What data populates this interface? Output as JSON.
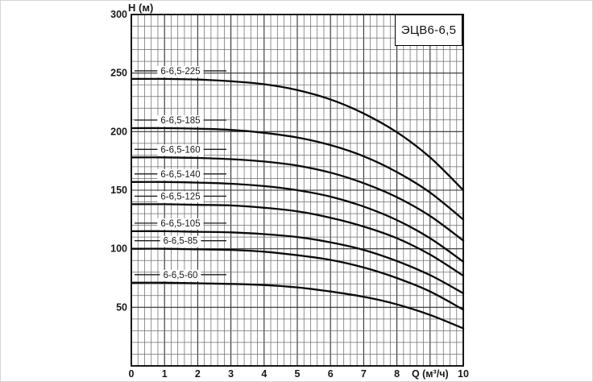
{
  "title_box": "ЭЦВ6-6,5",
  "y_axis": {
    "label": "H (м)",
    "tick_labels": [
      "300",
      "250",
      "200",
      "150",
      "100",
      "50"
    ],
    "tick_values": [
      300,
      250,
      200,
      150,
      100,
      50
    ]
  },
  "x_axis": {
    "label": "Q (м³/ч)",
    "tick_labels": [
      "0",
      "1",
      "2",
      "3",
      "4",
      "5",
      "6",
      "7",
      "8",
      "Q (м³/ч)",
      "10"
    ],
    "tick_values": [
      0,
      1,
      2,
      3,
      4,
      5,
      6,
      7,
      8,
      9,
      10
    ]
  },
  "chart_data": {
    "type": "line",
    "title": "ЭЦВ6-6,5",
    "xlabel": "Q (м³/ч)",
    "ylabel": "H (м)",
    "xlim": [
      0,
      10
    ],
    "ylim": [
      0,
      300
    ],
    "grid": "minor x every 0.2, minor y every 10, major x every 1, major y every 50",
    "legend_position": "labels above each curve start",
    "x": [
      0,
      1,
      2,
      3,
      4,
      5,
      6,
      7,
      8,
      9,
      10
    ],
    "series": [
      {
        "name": "6-6,5-225",
        "values": [
          245,
          245,
          244.5,
          243,
          240.5,
          235.5,
          227.5,
          215.5,
          199.5,
          178,
          150
        ]
      },
      {
        "name": "6-6,5-185",
        "values": [
          203,
          203,
          202.5,
          201.5,
          199,
          195,
          188.5,
          179,
          165.5,
          148,
          125
        ]
      },
      {
        "name": "6-6,5-160",
        "values": [
          178,
          178,
          177.5,
          176.5,
          174.5,
          171,
          165,
          156,
          144,
          128,
          107
        ]
      },
      {
        "name": "6-6,5-140",
        "values": [
          157,
          157,
          156.5,
          155.5,
          153.5,
          150,
          144.5,
          136,
          124.5,
          109,
          89
        ]
      },
      {
        "name": "6-6,5-125",
        "values": [
          138,
          138,
          137.5,
          137,
          135,
          132,
          126.5,
          119,
          109,
          95,
          77
        ]
      },
      {
        "name": "6-6,5-105",
        "values": [
          115,
          115,
          114.5,
          114,
          112.5,
          110,
          105.5,
          99,
          89.5,
          77.5,
          62
        ]
      },
      {
        "name": "6-6,5-85",
        "values": [
          100,
          100,
          99.5,
          99,
          97.5,
          94.5,
          90.5,
          84,
          75,
          63.5,
          48
        ]
      },
      {
        "name": "6-6,5-60",
        "values": [
          71,
          71,
          70.5,
          70,
          69,
          67,
          63.5,
          59,
          52.5,
          43.5,
          32
        ]
      }
    ],
    "colors": {
      "curve": "#0a0a0a",
      "grid_minor": "#6e6e6e",
      "grid_major": "#2e2e2e",
      "frame": "#000000",
      "text": "#1a1a1a",
      "background": "#ffffff"
    }
  }
}
